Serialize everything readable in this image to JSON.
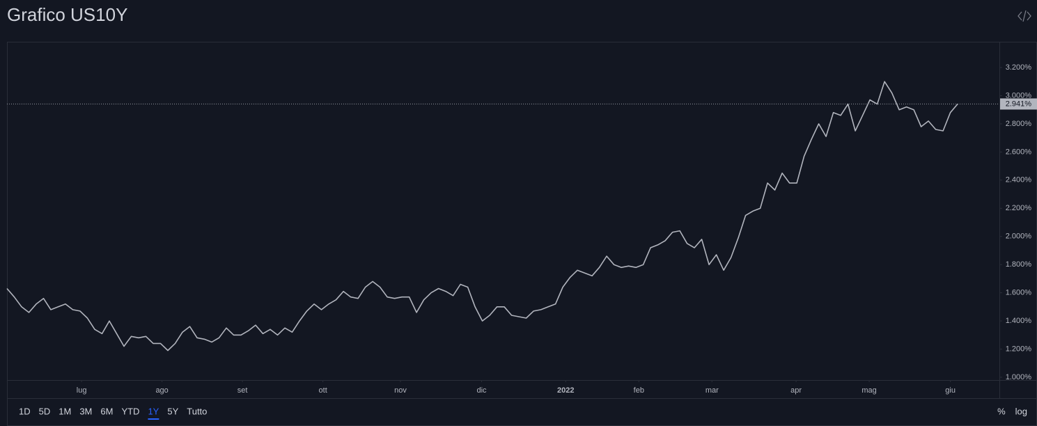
{
  "chart_data": {
    "type": "line",
    "title": "Grafico US10Y",
    "color": "#b2b5be",
    "values": [
      1.63,
      1.57,
      1.5,
      1.46,
      1.52,
      1.56,
      1.48,
      1.5,
      1.52,
      1.48,
      1.47,
      1.42,
      1.34,
      1.31,
      1.4,
      1.31,
      1.22,
      1.29,
      1.28,
      1.29,
      1.24,
      1.24,
      1.19,
      1.24,
      1.32,
      1.36,
      1.28,
      1.27,
      1.25,
      1.28,
      1.35,
      1.3,
      1.3,
      1.33,
      1.37,
      1.31,
      1.34,
      1.3,
      1.35,
      1.32,
      1.4,
      1.47,
      1.52,
      1.48,
      1.52,
      1.55,
      1.61,
      1.57,
      1.56,
      1.64,
      1.68,
      1.64,
      1.57,
      1.56,
      1.57,
      1.57,
      1.46,
      1.55,
      1.6,
      1.63,
      1.61,
      1.58,
      1.66,
      1.64,
      1.5,
      1.4,
      1.44,
      1.5,
      1.5,
      1.44,
      1.43,
      1.42,
      1.47,
      1.48,
      1.5,
      1.52,
      1.64,
      1.71,
      1.76,
      1.74,
      1.72,
      1.78,
      1.86,
      1.8,
      1.78,
      1.79,
      1.78,
      1.8,
      1.92,
      1.94,
      1.97,
      2.03,
      2.04,
      1.95,
      1.92,
      1.98,
      1.8,
      1.87,
      1.76,
      1.85,
      1.99,
      2.15,
      2.18,
      2.2,
      2.38,
      2.33,
      2.45,
      2.38,
      2.38,
      2.57,
      2.69,
      2.8,
      2.71,
      2.88,
      2.86,
      2.94,
      2.75,
      2.86,
      2.97,
      2.94,
      3.1,
      3.02,
      2.9,
      2.92,
      2.9,
      2.78,
      2.82,
      2.76,
      2.75,
      2.88,
      2.941
    ],
    "last_price": 2.941,
    "last_price_label": "2.941%",
    "xlim": [
      0,
      135.7
    ],
    "xticks": [
      {
        "value": 10.2,
        "label": "lug"
      },
      {
        "value": 21.2,
        "label": "ago"
      },
      {
        "value": 32.2,
        "label": "set"
      },
      {
        "value": 43.2,
        "label": "ott"
      },
      {
        "value": 53.8,
        "label": "nov"
      },
      {
        "value": 64.9,
        "label": "dic"
      },
      {
        "value": 76.4,
        "label": "2022"
      },
      {
        "value": 86.4,
        "label": "feb"
      },
      {
        "value": 96.4,
        "label": "mar"
      },
      {
        "value": 107.9,
        "label": "apr"
      },
      {
        "value": 117.9,
        "label": "mag"
      },
      {
        "value": 129.0,
        "label": "giu"
      }
    ],
    "ylim": [
      0.98,
      3.383
    ],
    "yticks": [
      {
        "value": 1.0,
        "label": "1.000%"
      },
      {
        "value": 1.2,
        "label": "1.200%"
      },
      {
        "value": 1.4,
        "label": "1.400%"
      },
      {
        "value": 1.6,
        "label": "1.600%"
      },
      {
        "value": 1.8,
        "label": "1.800%"
      },
      {
        "value": 2.0,
        "label": "2.000%"
      },
      {
        "value": 2.2,
        "label": "2.200%"
      },
      {
        "value": 2.4,
        "label": "2.400%"
      },
      {
        "value": 2.6,
        "label": "2.600%"
      },
      {
        "value": 2.8,
        "label": "2.800%"
      },
      {
        "value": 3.0,
        "label": "3.000%"
      },
      {
        "value": 3.2,
        "label": "3.200%"
      }
    ],
    "grid": false
  },
  "toolbar": {
    "ranges": [
      "1D",
      "5D",
      "1M",
      "3M",
      "6M",
      "YTD",
      "1Y",
      "5Y",
      "Tutto"
    ],
    "active": 6,
    "options": [
      "%",
      "log"
    ]
  }
}
